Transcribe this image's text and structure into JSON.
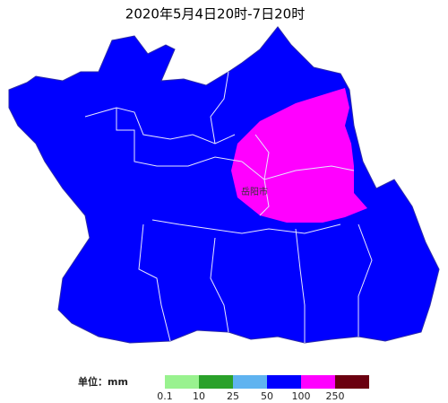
{
  "title": "2020年5月4日20时-7日20时",
  "map": {
    "labels": [
      {
        "text": "岳阳市"
      }
    ]
  },
  "legend": {
    "unit_label": "单位：mm",
    "colors": [
      "#99f28f",
      "#2aa12a",
      "#5fb3f0",
      "#0000ff",
      "#ff00ff",
      "#6b0010"
    ],
    "ticks": [
      0.1,
      10,
      25,
      50,
      100,
      250
    ]
  }
}
